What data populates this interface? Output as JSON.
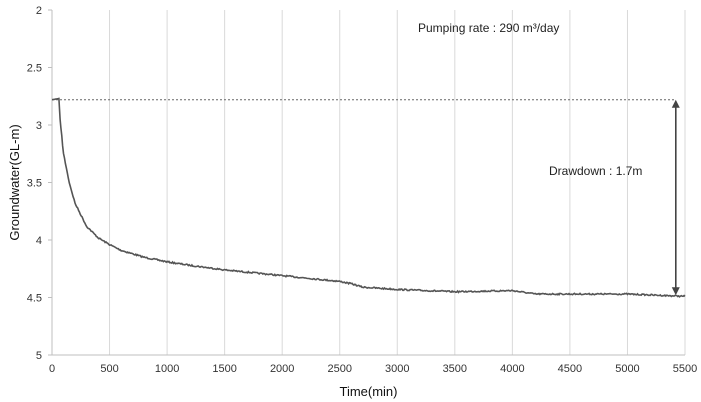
{
  "chart_data": {
    "type": "line",
    "title": "",
    "xlabel": "Time(min)",
    "ylabel": "Groundwater(GL-m)",
    "xlim": [
      0,
      5500
    ],
    "ylim": [
      2,
      5
    ],
    "y_inverted": true,
    "grid": "vertical",
    "x_ticks": [
      "0",
      "500",
      "1000",
      "1500",
      "2000",
      "2500",
      "3000",
      "3500",
      "4000",
      "4500",
      "5000",
      "5500"
    ],
    "y_ticks": [
      "2",
      "2.5",
      "3",
      "3.5",
      "4",
      "4.5",
      "5"
    ],
    "series": [
      {
        "color": "#555555",
        "x": [
          0,
          60,
          70,
          100,
          150,
          200,
          300,
          400,
          500,
          600,
          800,
          1000,
          1200,
          1500,
          1800,
          2000,
          2200,
          2500,
          2600,
          2700,
          3000,
          3500,
          4000,
          4200,
          4500,
          5000,
          5500
        ],
        "y": [
          2.78,
          2.77,
          2.95,
          3.25,
          3.5,
          3.68,
          3.88,
          3.98,
          4.04,
          4.09,
          4.15,
          4.19,
          4.22,
          4.26,
          4.29,
          4.31,
          4.33,
          4.36,
          4.38,
          4.41,
          4.43,
          4.45,
          4.44,
          4.47,
          4.47,
          4.47,
          4.49
        ]
      }
    ],
    "reference_line": {
      "y": 2.78,
      "style": "dashed"
    },
    "annotations": {
      "pumping_rate": "Pumping rate : 290 m³/day",
      "drawdown": "Drawdown : 1.7m"
    },
    "drawdown_arrow": {
      "x": 5420,
      "y_from": 2.78,
      "y_to": 4.48
    }
  }
}
